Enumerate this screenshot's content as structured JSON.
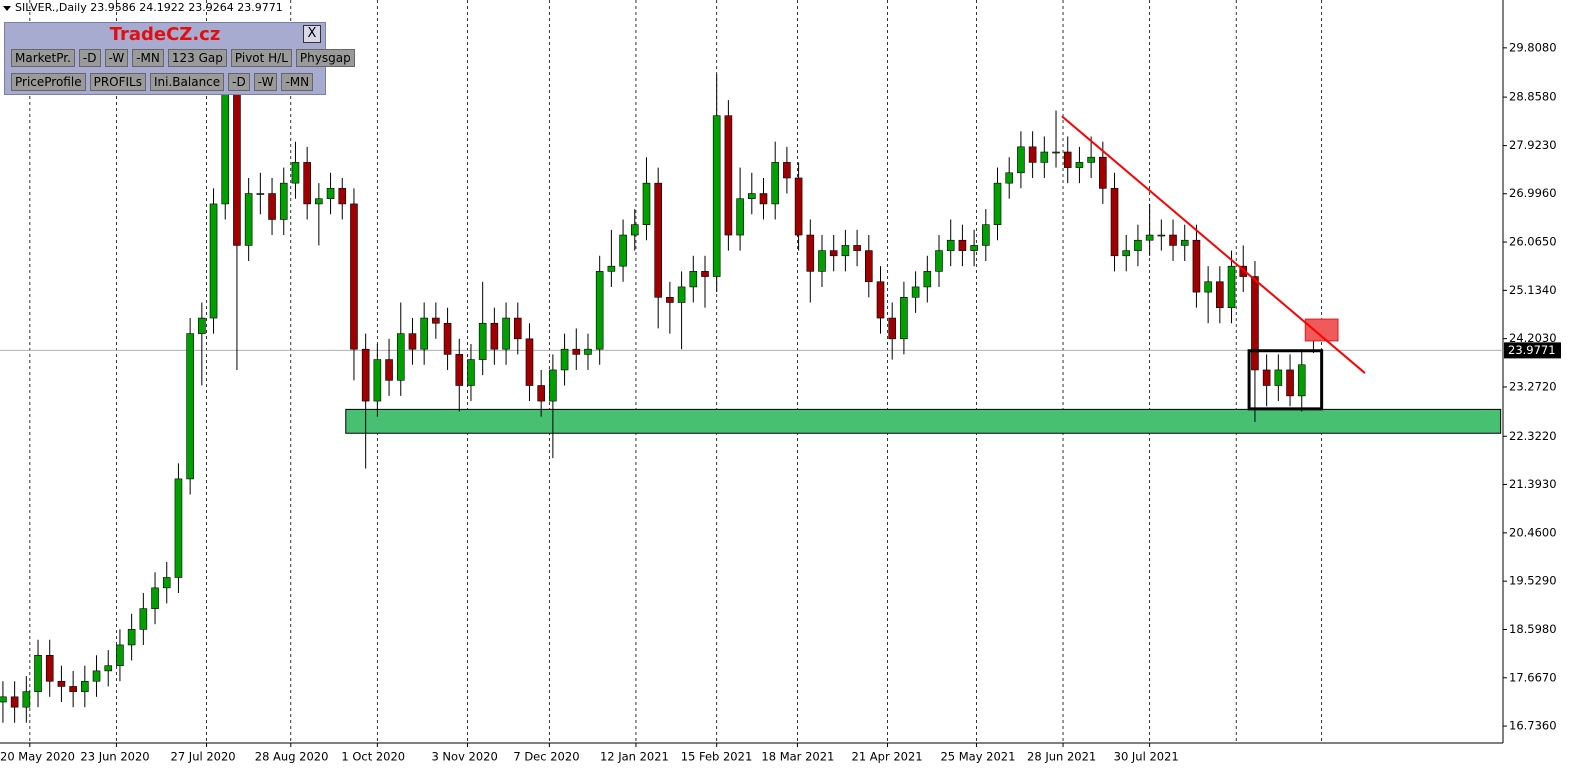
{
  "header": {
    "symbol": "SILVER.,Daily"
  },
  "panel": {
    "title": "TradeCZ.cz",
    "close": "X",
    "buttons": [
      [
        "MarketPr.",
        "-D",
        "-W",
        "-MN",
        "123 Gap",
        "Pivot H/L",
        "Physgap"
      ],
      [
        "PriceProfile",
        "PROFILs",
        "Ini.Balance",
        "-D",
        "-W",
        "-MN"
      ]
    ]
  },
  "chart_data": {
    "type": "candlestick",
    "bull_color": "#00a000",
    "bear_color": "#a00000",
    "wick_color": "#000000",
    "grid": true,
    "xlim": [
      -0.25,
      128.2
    ],
    "xticks": [
      {
        "value": 2.3,
        "label": "20 May 2020"
      },
      {
        "value": 9.7,
        "label": "23 Jun 2020"
      },
      {
        "value": 17.4,
        "label": "27 Jul 2020"
      },
      {
        "value": 24.6,
        "label": "28 Aug 2020"
      },
      {
        "value": 32,
        "label": "1 Oct 2020"
      },
      {
        "value": 39.7,
        "label": "3 Nov 2020"
      },
      {
        "value": 46.7,
        "label": "7 Dec 2020"
      },
      {
        "value": 54.1,
        "label": "12 Jan 2021"
      },
      {
        "value": 61,
        "label": "15 Feb 2021"
      },
      {
        "value": 67.9,
        "label": "18 Mar 2021"
      },
      {
        "value": 75.6,
        "label": "21 Apr 2021"
      },
      {
        "value": 83.2,
        "label": "25 May 2021"
      },
      {
        "value": 90.6,
        "label": "28 Jun 2021"
      },
      {
        "value": 98,
        "label": "30 Jul 2021"
      }
    ],
    "vlines": [
      105.4,
      112.7
    ],
    "ylim": [
      16.41,
      30.73
    ],
    "yticks": [
      {
        "value": 29.808,
        "label": "29.8080"
      },
      {
        "value": 28.858,
        "label": "28.8580"
      },
      {
        "value": 27.923,
        "label": "27.9230"
      },
      {
        "value": 26.996,
        "label": "26.9960"
      },
      {
        "value": 26.065,
        "label": "26.0650"
      },
      {
        "value": 25.134,
        "label": "25.1340"
      },
      {
        "value": 24.203,
        "label": "24.2030"
      },
      {
        "value": 23.272,
        "label": "23.2720"
      },
      {
        "value": 22.322,
        "label": "22.3220"
      },
      {
        "value": 21.393,
        "label": "21.3930"
      },
      {
        "value": 20.46,
        "label": "20.4600"
      },
      {
        "value": 19.529,
        "label": "19.5290"
      },
      {
        "value": 18.598,
        "label": "18.5980"
      },
      {
        "value": 17.667,
        "label": "17.6670"
      },
      {
        "value": 16.736,
        "label": "16.7360"
      }
    ],
    "open": [
      17.2,
      17.3,
      17.1,
      17.4,
      18.1,
      17.6,
      17.5,
      17.4,
      17.6,
      17.8,
      17.9,
      18.3,
      18.6,
      19.0,
      19.4,
      19.6,
      21.5,
      24.3,
      24.6,
      26.8,
      29.0,
      26.0,
      27.0,
      27.0,
      26.5,
      27.2,
      27.6,
      26.8,
      26.9,
      27.1,
      26.8,
      24.0,
      23.0,
      23.8,
      23.4,
      24.3,
      24.0,
      24.6,
      24.5,
      23.9,
      23.3,
      23.8,
      24.5,
      24.0,
      24.6,
      24.2,
      23.3,
      23.0,
      23.6,
      24.0,
      23.9,
      24.0,
      25.5,
      25.6,
      26.2,
      26.4,
      27.2,
      25.0,
      24.9,
      25.2,
      25.5,
      25.4,
      28.5,
      26.2,
      26.9,
      27.0,
      26.8,
      27.6,
      27.3,
      26.2,
      25.5,
      25.9,
      25.8,
      26.0,
      25.9,
      25.3,
      24.6,
      24.2,
      25.0,
      25.2,
      25.5,
      25.9,
      26.1,
      25.9,
      26.0,
      26.4,
      27.2,
      27.4,
      27.9,
      27.6,
      27.8,
      27.8,
      27.5,
      27.6,
      27.7,
      27.1,
      25.8,
      25.9,
      26.1,
      26.2,
      26.2,
      26.0,
      26.1,
      25.1,
      25.3,
      24.8,
      25.6,
      25.4,
      23.6,
      23.3,
      23.6,
      23.1,
      23.9586
    ],
    "high": [
      17.6,
      17.6,
      17.7,
      18.4,
      18.4,
      17.9,
      17.8,
      17.9,
      18.1,
      18.2,
      18.6,
      18.9,
      19.3,
      19.7,
      19.9,
      21.8,
      24.6,
      24.9,
      27.1,
      29.6,
      29.3,
      27.3,
      27.4,
      27.3,
      27.5,
      28.0,
      27.9,
      27.2,
      27.4,
      27.3,
      27.1,
      24.3,
      24.1,
      24.2,
      24.9,
      24.6,
      24.9,
      24.9,
      24.8,
      24.2,
      24.1,
      25.3,
      24.8,
      24.9,
      24.9,
      24.5,
      23.6,
      23.9,
      24.3,
      24.4,
      24.3,
      25.8,
      26.3,
      26.5,
      26.7,
      27.7,
      27.5,
      25.3,
      25.5,
      25.8,
      25.8,
      29.3,
      28.8,
      27.5,
      27.4,
      27.3,
      28.0,
      27.9,
      27.6,
      26.5,
      26.2,
      26.2,
      26.3,
      26.3,
      26.2,
      25.6,
      24.9,
      25.3,
      25.5,
      25.8,
      26.2,
      26.5,
      26.4,
      26.3,
      26.7,
      27.5,
      27.7,
      28.2,
      28.2,
      28.1,
      28.6,
      28.1,
      27.9,
      28.1,
      28.0,
      27.4,
      26.2,
      26.4,
      26.8,
      26.5,
      26.5,
      26.4,
      26.4,
      25.6,
      25.6,
      25.9,
      26.0,
      25.7,
      23.9,
      23.9,
      23.9,
      24.0,
      24.1922
    ],
    "low": [
      16.8,
      16.8,
      16.8,
      17.1,
      17.3,
      17.2,
      17.1,
      17.1,
      17.3,
      17.5,
      17.6,
      18.0,
      18.3,
      18.7,
      19.1,
      19.3,
      21.2,
      23.3,
      24.3,
      26.5,
      23.6,
      25.7,
      26.6,
      26.2,
      26.2,
      26.9,
      26.5,
      26.0,
      26.6,
      26.5,
      23.4,
      21.7,
      22.7,
      23.1,
      23.1,
      23.7,
      23.7,
      24.2,
      23.6,
      22.8,
      23.0,
      23.5,
      23.7,
      23.7,
      23.9,
      23.0,
      22.7,
      21.9,
      23.3,
      23.6,
      23.6,
      23.7,
      25.2,
      25.3,
      25.9,
      26.1,
      24.4,
      24.3,
      24.0,
      24.9,
      24.8,
      25.1,
      25.9,
      25.9,
      26.6,
      26.5,
      26.5,
      27.0,
      25.9,
      24.9,
      25.2,
      25.5,
      25.5,
      25.6,
      25.0,
      24.3,
      23.8,
      23.9,
      24.7,
      24.9,
      25.2,
      25.6,
      25.6,
      25.6,
      25.7,
      26.1,
      26.9,
      27.1,
      27.3,
      27.3,
      27.5,
      27.2,
      27.2,
      27.3,
      26.8,
      25.5,
      25.5,
      25.6,
      25.8,
      25.9,
      25.7,
      25.7,
      24.8,
      24.5,
      24.5,
      24.5,
      25.1,
      22.6,
      22.9,
      23.0,
      22.9,
      22.8,
      23.9264
    ],
    "close": [
      17.3,
      17.1,
      17.4,
      18.1,
      17.6,
      17.5,
      17.4,
      17.6,
      17.8,
      17.9,
      18.3,
      18.6,
      19.0,
      19.4,
      19.6,
      21.5,
      24.3,
      24.6,
      26.8,
      29.0,
      26.0,
      27.0,
      27.0,
      26.5,
      27.2,
      27.6,
      26.8,
      26.9,
      27.1,
      26.8,
      24.0,
      23.0,
      23.8,
      23.4,
      24.3,
      24.0,
      24.6,
      24.5,
      23.9,
      23.3,
      23.8,
      24.5,
      24.0,
      24.6,
      24.2,
      23.3,
      23.0,
      23.6,
      24.0,
      23.9,
      24.0,
      25.5,
      25.6,
      26.2,
      26.4,
      27.2,
      25.0,
      24.9,
      25.2,
      25.5,
      25.4,
      28.5,
      26.2,
      26.9,
      27.0,
      26.8,
      27.6,
      27.3,
      26.2,
      25.5,
      25.9,
      25.8,
      26.0,
      25.9,
      25.3,
      24.6,
      24.2,
      25.0,
      25.2,
      25.5,
      25.9,
      26.1,
      25.9,
      26.0,
      26.4,
      27.2,
      27.4,
      27.9,
      27.6,
      27.8,
      27.8,
      27.5,
      27.6,
      27.7,
      27.1,
      25.8,
      25.9,
      26.1,
      26.2,
      26.2,
      26.0,
      26.1,
      25.1,
      25.3,
      24.8,
      25.6,
      25.4,
      23.6,
      23.3,
      23.6,
      23.1,
      23.7,
      23.9771
    ],
    "shapes": [
      {
        "kind": "rect",
        "fill": "#48c072",
        "stroke": "#000000",
        "x": [
          29.3,
          128.0
        ],
        "y": [
          22.38,
          22.84
        ]
      },
      {
        "kind": "rect",
        "fill": "#f05a5a",
        "stroke": "#d02020",
        "x": [
          111.3,
          114.1
        ],
        "y": [
          24.16,
          24.58
        ]
      },
      {
        "kind": "rect",
        "fill": "none",
        "stroke": "#000000",
        "x": [
          106.5,
          112.7
        ],
        "y": [
          22.85,
          23.97
        ]
      },
      {
        "kind": "line",
        "fill": "none",
        "stroke": "#ff0000",
        "x": [
          90.5,
          116.4
        ],
        "y": [
          28.49,
          23.54
        ]
      }
    ]
  }
}
